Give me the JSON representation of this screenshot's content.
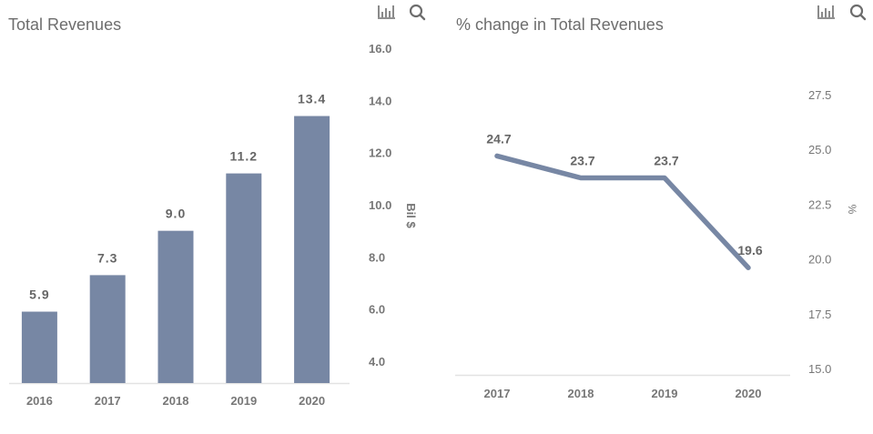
{
  "colors": {
    "bar": "#7787a4",
    "line": "#7787a4",
    "label": "#666666",
    "tick": "#777777",
    "axis": "#e3e3e3",
    "title": "#6d6d6d",
    "icon": "#6d6d6d"
  },
  "icons": {
    "chart_toggle": "bar-chart-icon",
    "zoom": "search-icon"
  },
  "chart_data": [
    {
      "type": "bar",
      "title": "Total Revenues",
      "xlabel": "",
      "ylabel": "Bil $",
      "categories": [
        "2016",
        "2017",
        "2018",
        "2019",
        "2020"
      ],
      "values": [
        5.9,
        7.3,
        9.0,
        11.2,
        13.4
      ],
      "data_labels": [
        "5.9",
        "7.3",
        "9.0",
        "11.2",
        "13.4"
      ],
      "yticks": [
        "4.0",
        "6.0",
        "8.0",
        "10.0",
        "12.0",
        "14.0",
        "16.0"
      ],
      "ylim": [
        3.16,
        16.0
      ],
      "y_axis_side": "right",
      "grid": false,
      "legend": "none"
    },
    {
      "type": "line",
      "title": "% change in Total Revenues",
      "xlabel": "",
      "ylabel": "%",
      "categories": [
        "2017",
        "2018",
        "2019",
        "2020"
      ],
      "values": [
        24.7,
        23.7,
        23.7,
        19.6
      ],
      "data_labels": [
        "24.7",
        "23.7",
        "23.7",
        "19.6"
      ],
      "yticks": [
        "15.0",
        "17.5",
        "20.0",
        "22.5",
        "25.0",
        "27.5"
      ],
      "ylim": [
        14.7,
        27.5
      ],
      "y_axis_side": "right",
      "grid": false,
      "legend": "none"
    }
  ]
}
